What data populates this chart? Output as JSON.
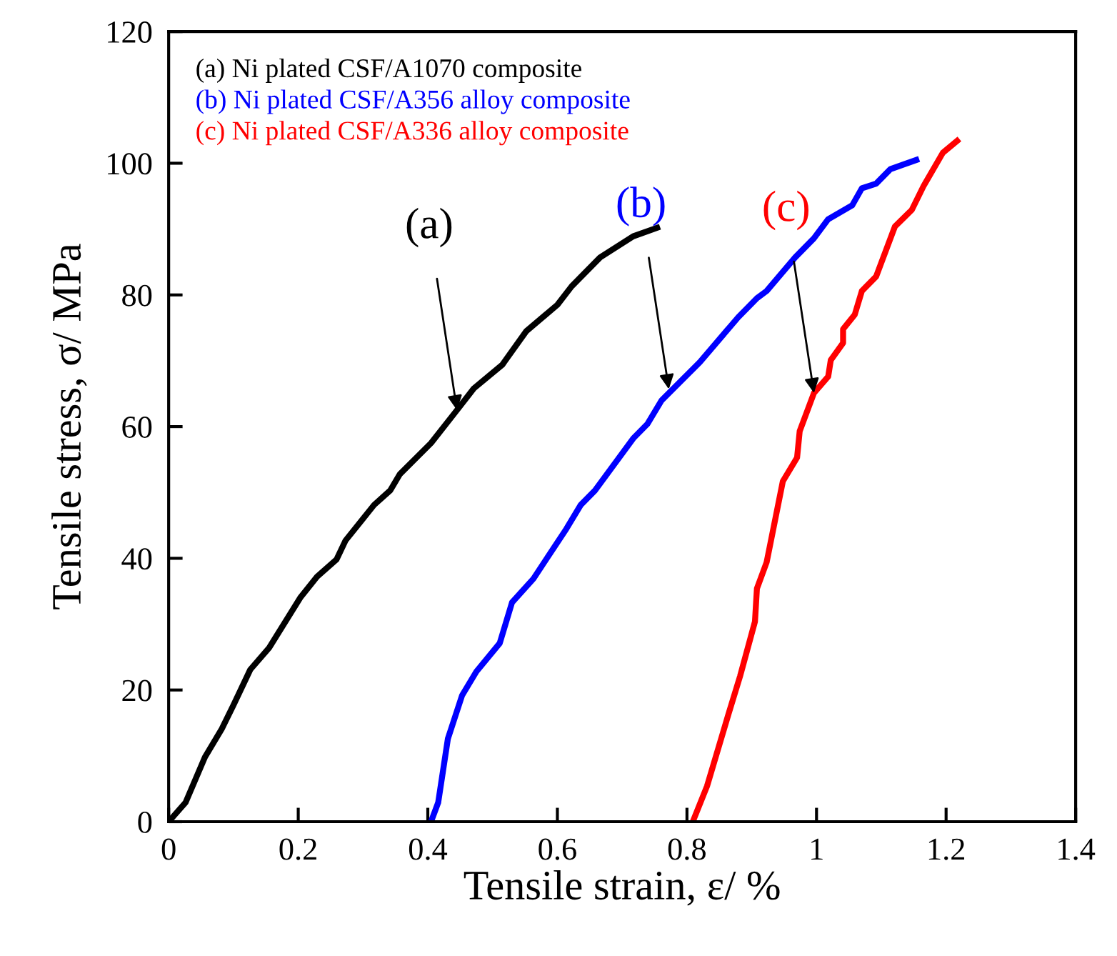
{
  "chart_data": {
    "type": "line",
    "xlabel": "Tensile strain, ε/ %",
    "ylabel": "Tensile stress, σ/ MPa",
    "xlim": [
      0,
      1.4
    ],
    "xticks": [
      0,
      0.2,
      0.4,
      0.6,
      0.8,
      1,
      1.2,
      1.4
    ],
    "ylim": [
      0,
      120
    ],
    "yticks": [
      0,
      20,
      40,
      60,
      80,
      100,
      120
    ],
    "grid": false,
    "legend": "top left",
    "marker": "none",
    "line_style": "solid",
    "series": [
      {
        "name": "(a) Ni plated CSF/A1070 composite",
        "color": "#000000",
        "x": [
          0,
          0.026,
          0.056,
          0.082,
          0.1,
          0.126,
          0.155,
          0.203,
          0.229,
          0.259,
          0.273,
          0.317,
          0.342,
          0.357,
          0.405,
          0.445,
          0.471,
          0.515,
          0.552,
          0.6,
          0.622,
          0.666,
          0.717,
          0.754
        ],
        "values": [
          0,
          2.9,
          9.8,
          14.1,
          17.7,
          23.1,
          26.4,
          34.0,
          37.2,
          39.8,
          42.7,
          48.1,
          50.3,
          52.8,
          57.5,
          62.5,
          65.8,
          69.4,
          74.5,
          78.5,
          81.3,
          85.7,
          88.9,
          90.2
        ]
      },
      {
        "name": "(b) Ni plated CSF/A356 alloy composite",
        "color": "#0000ff",
        "x": [
          0.405,
          0.416,
          0.431,
          0.453,
          0.475,
          0.511,
          0.53,
          0.563,
          0.614,
          0.636,
          0.658,
          0.717,
          0.739,
          0.761,
          0.82,
          0.879,
          0.908,
          0.923,
          0.967,
          0.996,
          1.018,
          1.055,
          1.07,
          1.092,
          1.114,
          1.154
        ],
        "values": [
          0,
          2.9,
          12.6,
          19.2,
          22.8,
          27.1,
          33.3,
          36.9,
          44.5,
          48.1,
          50.3,
          58.2,
          60.4,
          64.0,
          69.8,
          76.6,
          79.5,
          80.6,
          85.7,
          88.6,
          91.5,
          93.6,
          96.2,
          96.9,
          99.1,
          100.5
        ]
      },
      {
        "name": "(c) Ni plated CSF/A336 alloy composite",
        "color": "#ff0000",
        "x": [
          0.809,
          0.831,
          0.864,
          0.882,
          0.905,
          0.908,
          0.923,
          0.948,
          0.97,
          0.974,
          0.996,
          1.018,
          1.022,
          1.041,
          1.041,
          1.059,
          1.07,
          1.092,
          1.121,
          1.147,
          1.165,
          1.195,
          1.217
        ],
        "values": [
          0,
          5.4,
          16.3,
          22.1,
          30.4,
          35.4,
          39.4,
          51.7,
          55.3,
          59.3,
          65.1,
          67.6,
          70.1,
          72.7,
          74.8,
          77.0,
          80.6,
          82.8,
          90.4,
          92.9,
          96.5,
          101.6,
          103.4
        ]
      }
    ],
    "annotations": [
      {
        "text": "(a)",
        "x": 0.445,
        "y": 62.5
      },
      {
        "text": "(b)",
        "x": 0.772,
        "y": 65.7
      },
      {
        "text": "(c)",
        "x": 0.996,
        "y": 65.1
      }
    ]
  }
}
